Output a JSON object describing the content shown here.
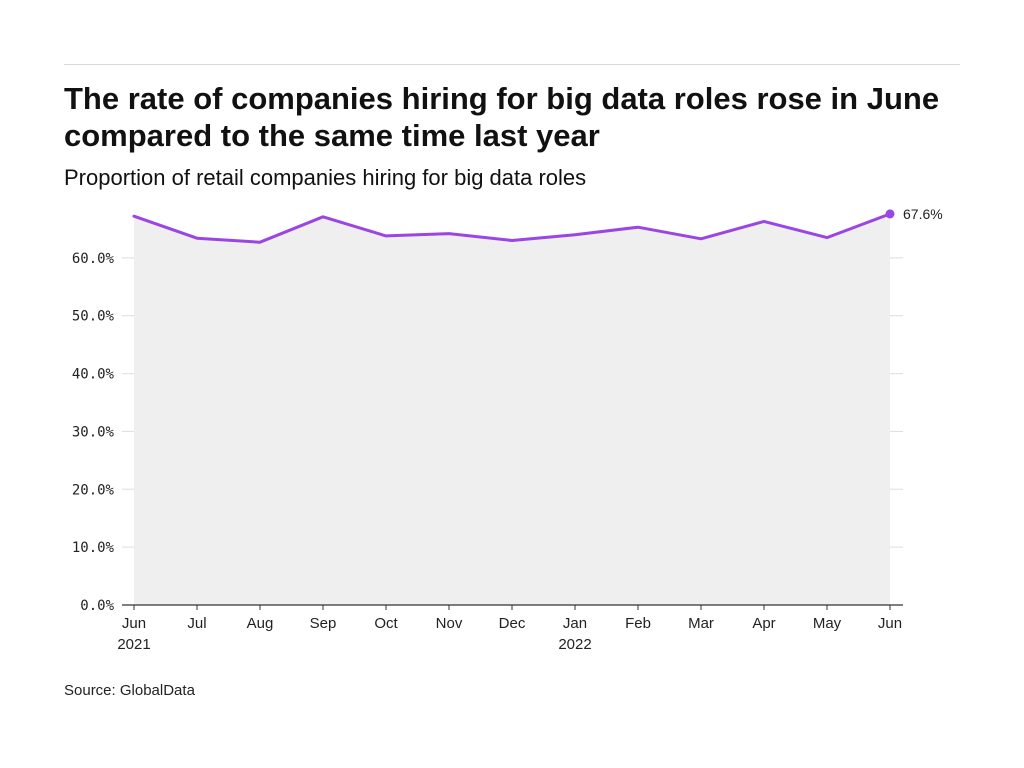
{
  "title": "The rate of companies hiring for big data roles rose in June compared to the same time last year",
  "subtitle": "Proportion of retail companies hiring for big data roles",
  "source": "Source: GlobalData",
  "colors": {
    "line": "#9b45e4",
    "area": "#efefef",
    "grid": "#dddddd",
    "axis": "#333333"
  },
  "chart_data": {
    "type": "area",
    "categories": [
      "Jun",
      "Jul",
      "Aug",
      "Sep",
      "Oct",
      "Nov",
      "Dec",
      "Jan",
      "Feb",
      "Mar",
      "Apr",
      "May",
      "Jun"
    ],
    "category_years": [
      "2021",
      "",
      "",
      "",
      "",
      "",
      "",
      "2022",
      "",
      "",
      "",
      "",
      ""
    ],
    "series": [
      {
        "values": [
          67.2,
          63.4,
          62.7,
          67.1,
          63.8,
          64.2,
          63.0,
          64.0,
          65.3,
          63.3,
          66.3,
          63.5,
          67.6
        ]
      }
    ],
    "end_label": "67.6%",
    "yticks": [
      0,
      10,
      20,
      30,
      40,
      50,
      60
    ],
    "ytick_labels": [
      "0.0%",
      "10.0%",
      "20.0%",
      "30.0%",
      "40.0%",
      "50.0%",
      "60.0%"
    ],
    "ylim": [
      0,
      70
    ],
    "grid": true,
    "xlabel": "",
    "ylabel": ""
  }
}
